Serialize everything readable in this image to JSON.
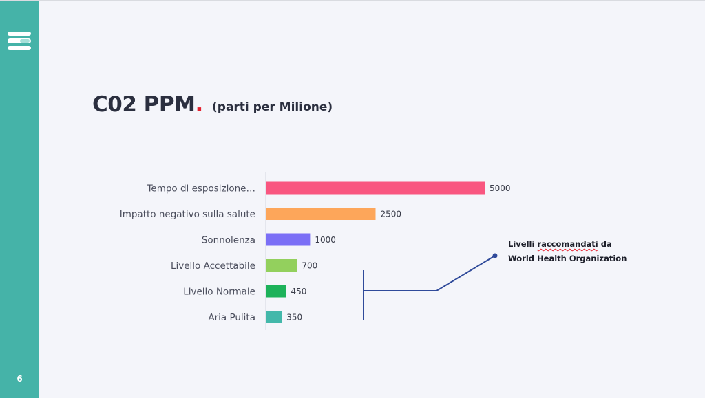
{
  "slide": {
    "title": "C02 PPM",
    "title_dot": ".",
    "subtitle": "(parti per Milione)",
    "page_number": "6"
  },
  "annotation": {
    "line1_word1": "Livelli",
    "line1_word2": "raccomandati",
    "line1_word3": "da",
    "line2": "World Health Organization"
  },
  "colors": {
    "sidebar": "#45b3a8",
    "accent_dot": "#e4202e",
    "annotation_line": "#2f4a9a"
  },
  "icons": {
    "menu": "menu-icon"
  },
  "chart_data": {
    "type": "bar",
    "orientation": "horizontal",
    "categories": [
      "Tempo di esposizione…",
      "Impatto negativo sulla salute",
      "Sonnolenza",
      "Livello Accettabile",
      "Livello Normale",
      "Aria Pulita"
    ],
    "values": [
      5000,
      2500,
      1000,
      700,
      450,
      350
    ],
    "data_labels": [
      "5000",
      "2500",
      "1000",
      "700",
      "450",
      "350"
    ],
    "bar_colors": [
      "#f95680",
      "#fda65a",
      "#7b6ff6",
      "#93d05d",
      "#1db25a",
      "#43b8aa"
    ],
    "xlim": [
      0,
      5000
    ],
    "grid": false
  }
}
